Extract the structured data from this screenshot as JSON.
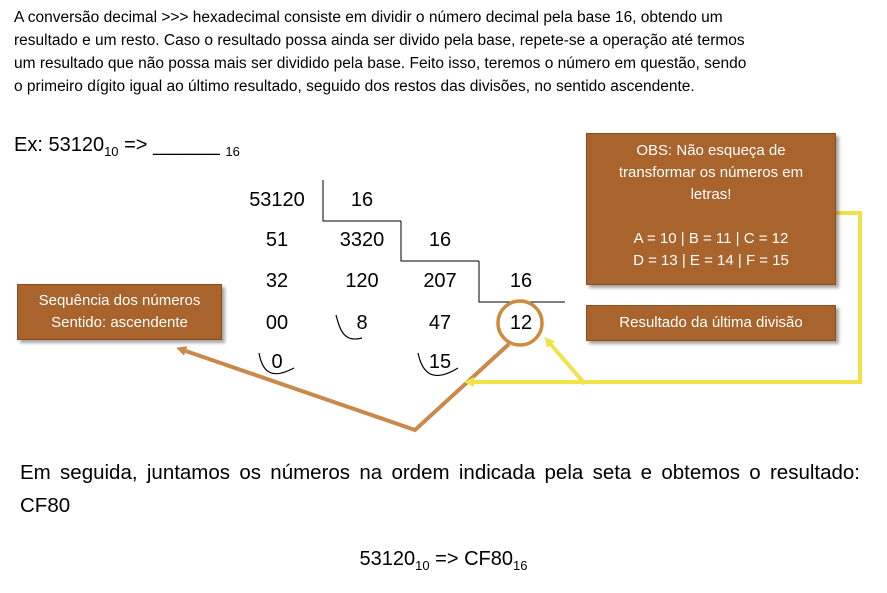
{
  "intro": {
    "lines": [
      "A conversão decimal >>> hexadecimal consiste em dividir o número decimal pela base 16, obtendo um",
      "resultado e um resto. Caso o resultado possa ainda ser divido pela base, repete-se a operação até termos",
      "um resultado que não possa mais ser dividido pela base. Feito isso, teremos o número em questão, sendo",
      "o primeiro dígito igual ao último resultado, seguido dos restos das divisões, no sentido ascendente."
    ]
  },
  "example": {
    "prefix": "Ex: 53120",
    "base_from": "10",
    "arrow": " => ",
    "blank": "______",
    "base_to": "16"
  },
  "division": {
    "r1": [
      "53120",
      "16"
    ],
    "r2": [
      "51",
      "3320",
      "16"
    ],
    "r3": [
      "32",
      "120",
      "207",
      "16"
    ],
    "r4": [
      "00",
      "8",
      "47",
      "12"
    ],
    "r5": [
      "0",
      "15"
    ]
  },
  "boxes": {
    "obs": {
      "line1": "OBS: Não esqueça de",
      "line2": "transformar os números em",
      "line3": "letras!",
      "line4": "A = 10 | B = 11 | C = 12",
      "line5": "D = 13 | E = 14 | F = 15"
    },
    "sequence": {
      "line1": "Sequência dos números",
      "line2": "Sentido: ascendente"
    },
    "last": {
      "label": "Resultado da última divisão"
    }
  },
  "conclusion": {
    "text": "Em seguida, juntamos os números na ordem indicada pela seta e obtemos o resultado: CF80"
  },
  "result": {
    "lhs": "53120",
    "lhs_base": "10",
    "arrow": " => CF80",
    "rhs_base": "16"
  },
  "colors": {
    "box_fill": "#a8642c",
    "arrow_brown": "#c8894a",
    "arrow_yellow": "#f2e24a",
    "circle": "#d08a3c"
  }
}
